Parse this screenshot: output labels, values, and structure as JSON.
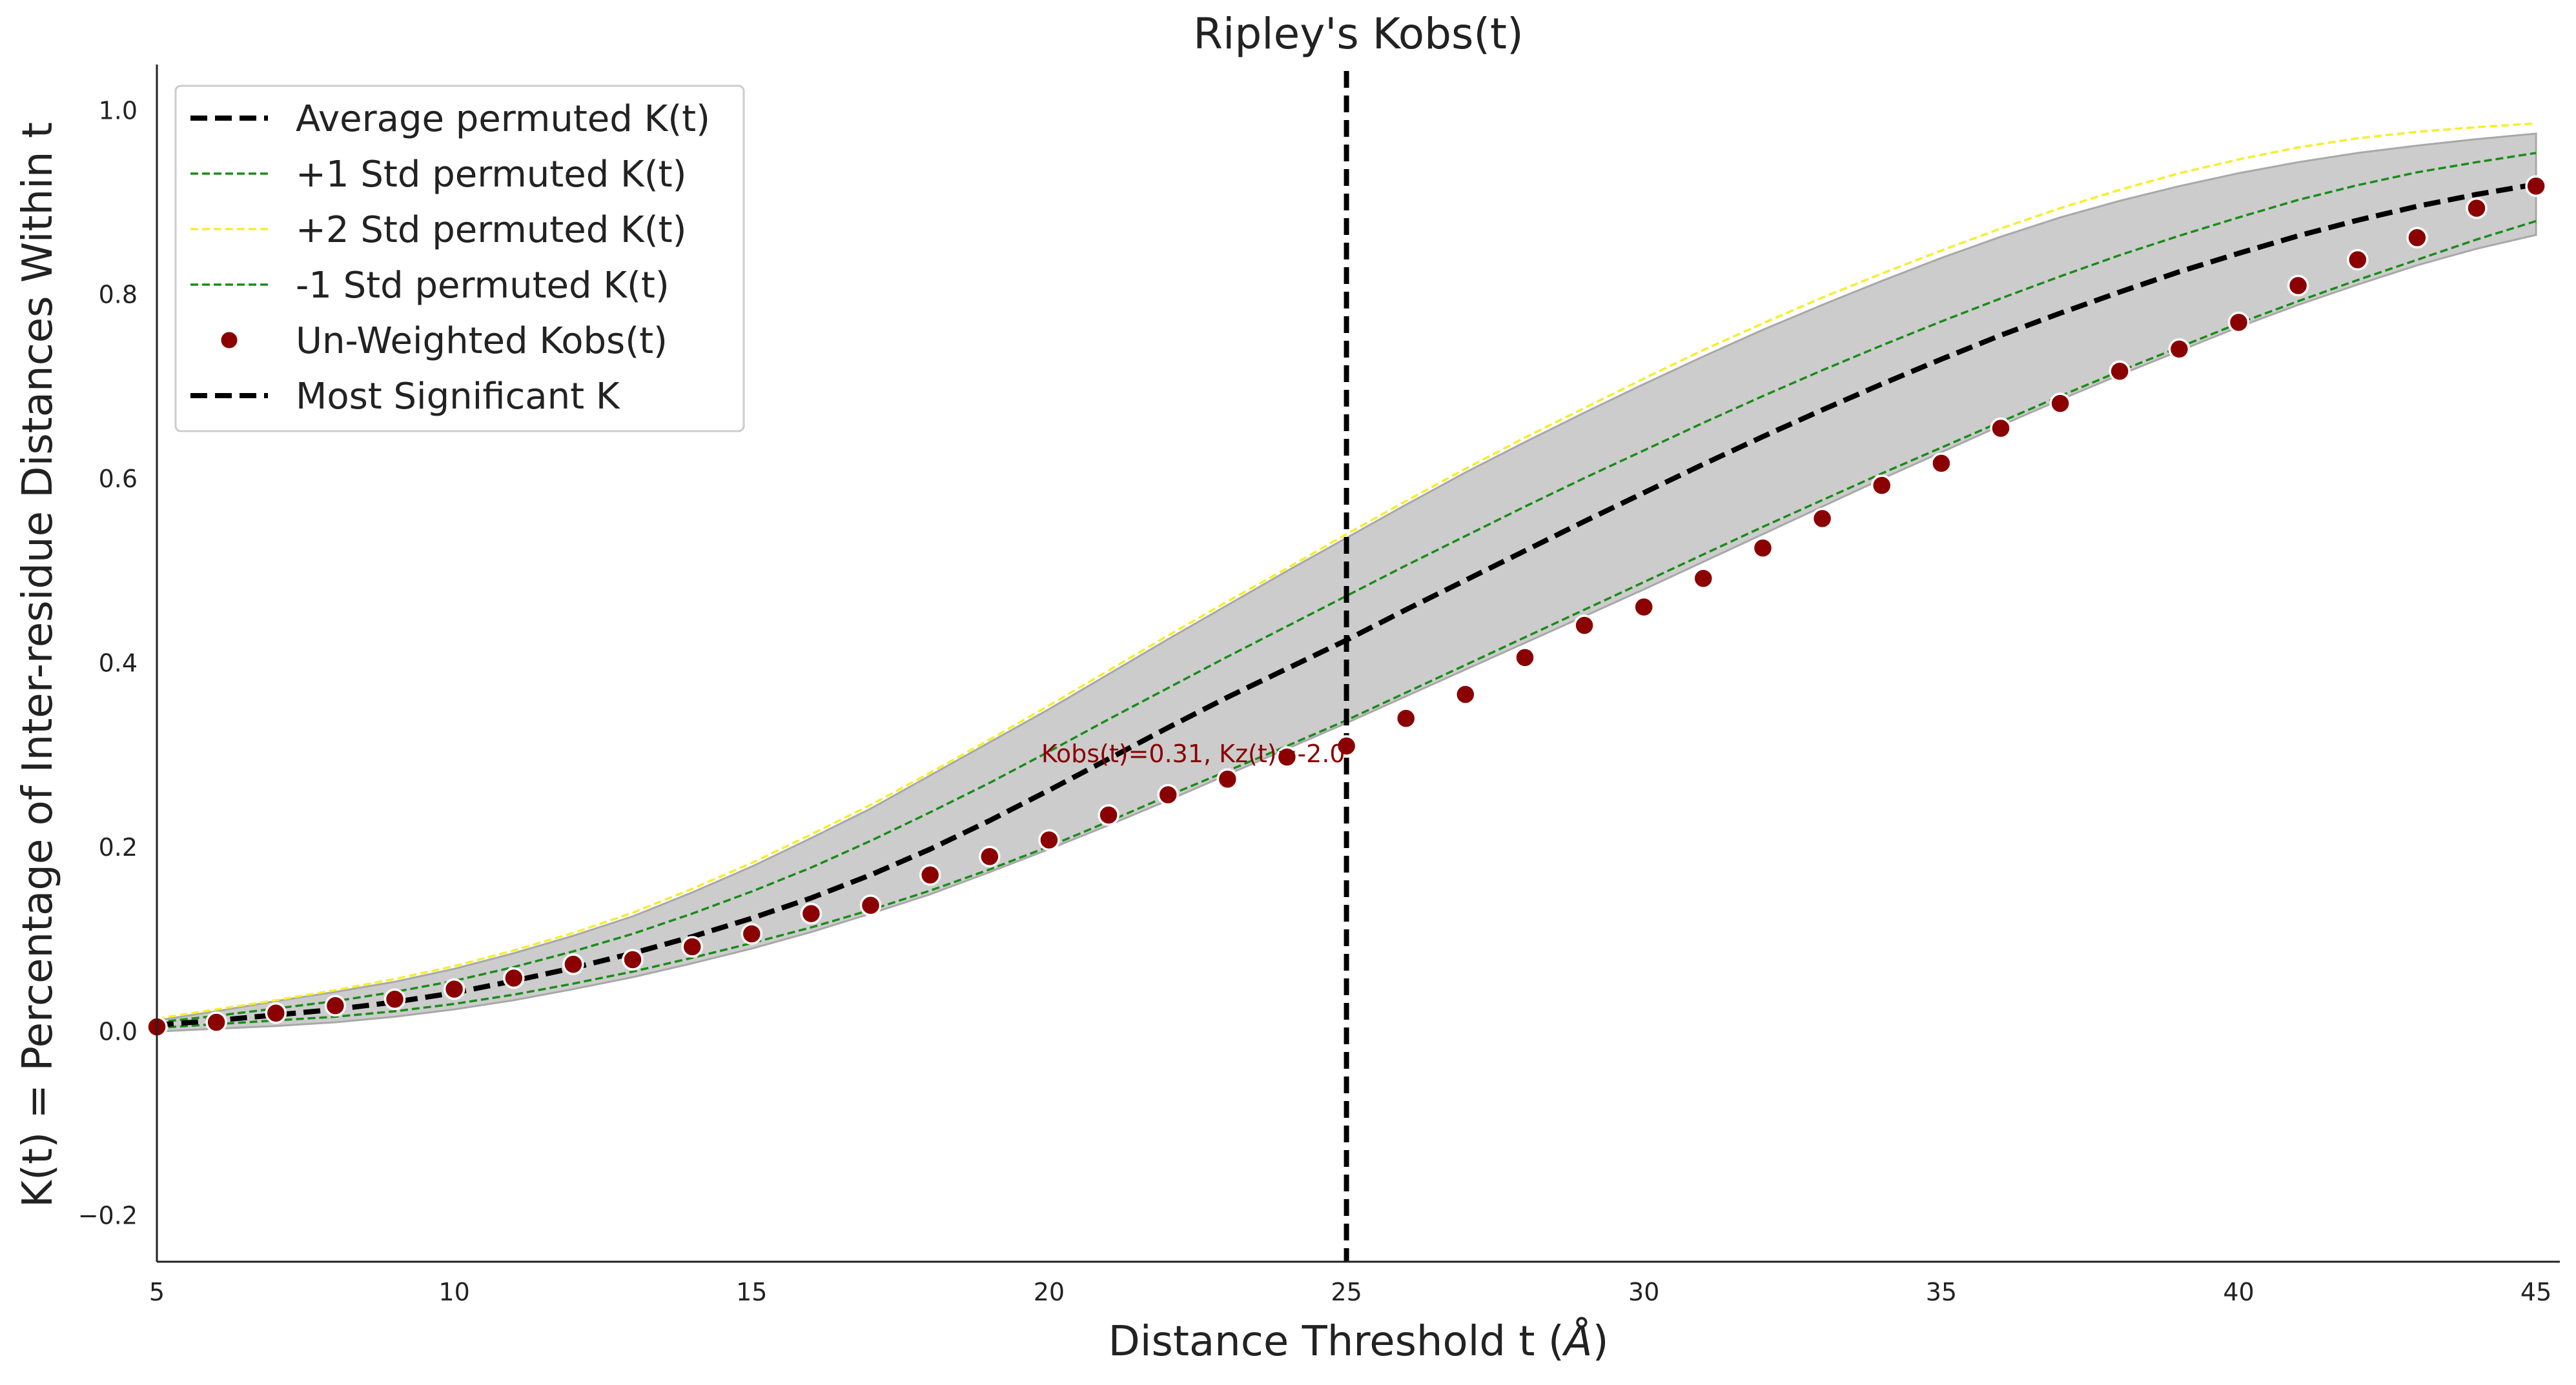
{
  "chart_data": {
    "type": "line",
    "title": "Ripley's Kobs(t)",
    "xlabel_main": "Distance Threshold t (",
    "xlabel_unit": "Å",
    "xlabel_close": ")",
    "ylabel": "K(t) = Percentage of Inter-residue Distances Within t",
    "xlim": [
      5,
      45.4
    ],
    "ylim": [
      -0.25,
      1.05
    ],
    "xticks": [
      5,
      10,
      15,
      20,
      25,
      30,
      35,
      40,
      45
    ],
    "yticks": [
      -0.2,
      0.0,
      0.2,
      0.4,
      0.6,
      0.8,
      1.0
    ],
    "ytick_labels": [
      "−0.2",
      "0.0",
      "0.2",
      "0.4",
      "0.6",
      "0.8",
      "1.0"
    ],
    "grid": false,
    "legend_position": "upper-left",
    "x": [
      5,
      6,
      7,
      8,
      9,
      10,
      11,
      12,
      13,
      14,
      15,
      16,
      17,
      18,
      19,
      20,
      21,
      22,
      23,
      24,
      25,
      26,
      27,
      28,
      29,
      30,
      31,
      32,
      33,
      34,
      35,
      36,
      37,
      38,
      39,
      40,
      41,
      42,
      43,
      44,
      45
    ],
    "band": {
      "name": "permutation envelope",
      "upper": [
        0.012,
        0.022,
        0.033,
        0.043,
        0.054,
        0.068,
        0.085,
        0.104,
        0.125,
        0.151,
        0.179,
        0.21,
        0.242,
        0.278,
        0.314,
        0.35,
        0.388,
        0.426,
        0.463,
        0.5,
        0.536,
        0.572,
        0.607,
        0.64,
        0.672,
        0.703,
        0.733,
        0.762,
        0.789,
        0.815,
        0.84,
        0.863,
        0.884,
        0.902,
        0.918,
        0.932,
        0.944,
        0.954,
        0.962,
        0.969,
        0.975
      ],
      "lower": [
        0.0,
        0.003,
        0.006,
        0.01,
        0.016,
        0.024,
        0.034,
        0.046,
        0.059,
        0.074,
        0.09,
        0.108,
        0.128,
        0.149,
        0.173,
        0.198,
        0.224,
        0.251,
        0.279,
        0.307,
        0.335,
        0.364,
        0.393,
        0.422,
        0.451,
        0.48,
        0.51,
        0.54,
        0.57,
        0.6,
        0.629,
        0.658,
        0.686,
        0.713,
        0.739,
        0.765,
        0.789,
        0.811,
        0.832,
        0.85,
        0.865
      ]
    },
    "series": [
      {
        "name": "Average permuted K(t)",
        "style": "dashed",
        "color": "#000000",
        "values": [
          0.007,
          0.012,
          0.018,
          0.024,
          0.032,
          0.042,
          0.055,
          0.069,
          0.085,
          0.103,
          0.123,
          0.145,
          0.17,
          0.198,
          0.229,
          0.262,
          0.296,
          0.33,
          0.363,
          0.394,
          0.425,
          0.458,
          0.49,
          0.522,
          0.554,
          0.585,
          0.616,
          0.646,
          0.675,
          0.703,
          0.73,
          0.756,
          0.78,
          0.803,
          0.825,
          0.845,
          0.864,
          0.881,
          0.896,
          0.909,
          0.92
        ]
      },
      {
        "name": "+1 Std permuted K(t)",
        "style": "dashed-thin",
        "color": "#1a8c1a",
        "values": [
          0.01,
          0.017,
          0.025,
          0.033,
          0.043,
          0.055,
          0.07,
          0.087,
          0.106,
          0.128,
          0.152,
          0.178,
          0.207,
          0.238,
          0.27,
          0.304,
          0.339,
          0.373,
          0.407,
          0.44,
          0.473,
          0.506,
          0.538,
          0.57,
          0.601,
          0.631,
          0.661,
          0.69,
          0.718,
          0.745,
          0.771,
          0.796,
          0.82,
          0.843,
          0.864,
          0.884,
          0.903,
          0.919,
          0.933,
          0.944,
          0.954
        ]
      },
      {
        "name": "+2 Std permuted K(t)",
        "style": "dashed-thin",
        "color": "#f5ef2a",
        "values": [
          0.014,
          0.024,
          0.034,
          0.045,
          0.057,
          0.071,
          0.088,
          0.107,
          0.129,
          0.155,
          0.183,
          0.214,
          0.246,
          0.281,
          0.317,
          0.354,
          0.392,
          0.43,
          0.467,
          0.503,
          0.54,
          0.576,
          0.611,
          0.645,
          0.677,
          0.709,
          0.74,
          0.769,
          0.797,
          0.823,
          0.848,
          0.872,
          0.894,
          0.914,
          0.932,
          0.947,
          0.96,
          0.97,
          0.977,
          0.982,
          0.986
        ]
      },
      {
        "name": "-1 Std permuted K(t)",
        "style": "dashed-thin",
        "color": "#1a8c1a",
        "values": [
          0.004,
          0.008,
          0.012,
          0.016,
          0.022,
          0.03,
          0.04,
          0.052,
          0.065,
          0.08,
          0.096,
          0.113,
          0.132,
          0.153,
          0.176,
          0.201,
          0.228,
          0.256,
          0.283,
          0.31,
          0.338,
          0.368,
          0.398,
          0.428,
          0.458,
          0.488,
          0.518,
          0.548,
          0.577,
          0.606,
          0.634,
          0.662,
          0.69,
          0.717,
          0.743,
          0.769,
          0.793,
          0.816,
          0.838,
          0.86,
          0.88
        ]
      }
    ],
    "scatter": {
      "name": "Un-Weighted Kobs(t)",
      "color": "#8b0000",
      "values": [
        0.005,
        0.01,
        0.02,
        0.028,
        0.035,
        0.046,
        0.058,
        0.073,
        0.078,
        0.092,
        0.106,
        0.128,
        0.137,
        0.17,
        0.19,
        0.208,
        0.235,
        0.257,
        0.274,
        0.298,
        0.31,
        0.34,
        0.366,
        0.406,
        0.441,
        0.461,
        0.492,
        0.525,
        0.557,
        0.593,
        0.617,
        0.655,
        0.682,
        0.717,
        0.741,
        0.77,
        0.81,
        0.838,
        0.862,
        0.894,
        0.918
      ]
    },
    "vline": {
      "name": "Most Significant K",
      "x": 25,
      "color": "#000000",
      "style": "dashed"
    },
    "annotation": {
      "text": "Kobs(t)=0.31, Kz(t)=-2.0",
      "x": 25,
      "y": 0.31,
      "color": "#8b0000"
    },
    "legend": [
      {
        "label": "Average permuted K(t)",
        "kind": "line-thick",
        "color": "#000000"
      },
      {
        "label": "+1 Std permuted K(t)",
        "kind": "line-thin",
        "color": "#1a8c1a"
      },
      {
        "label": "+2 Std permuted K(t)",
        "kind": "line-thin",
        "color": "#f5ef2a"
      },
      {
        "label": "-1 Std permuted K(t)",
        "kind": "line-thin",
        "color": "#1a8c1a"
      },
      {
        "label": "Un-Weighted Kobs(t)",
        "kind": "marker",
        "color": "#8b0000"
      },
      {
        "label": "Most Significant K",
        "kind": "line-thick",
        "color": "#000000"
      }
    ]
  }
}
